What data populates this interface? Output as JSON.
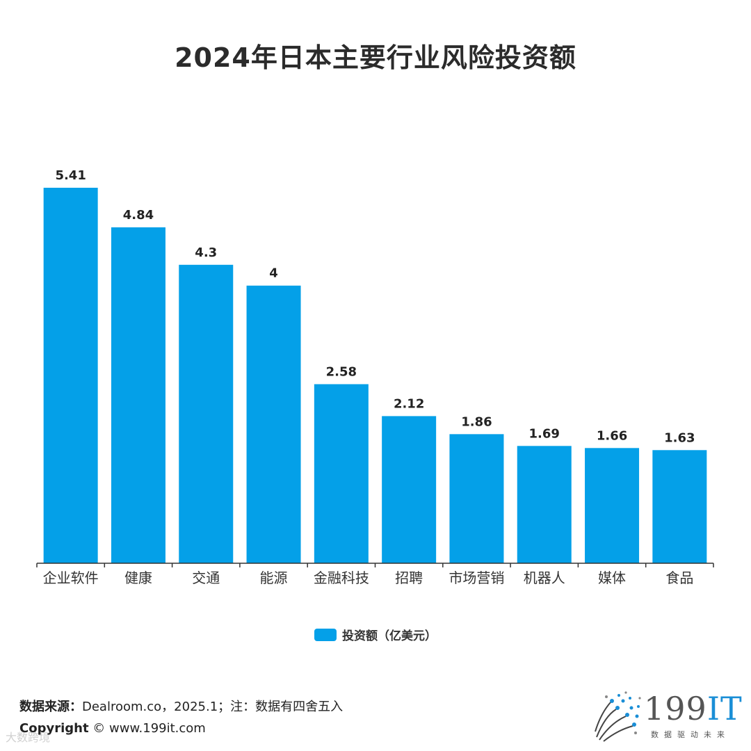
{
  "title": "2024年日本主要行业风险投资额",
  "colors": {
    "bar": "#04a0e8",
    "axis": "#333333",
    "label": "#222222"
  },
  "chart_data": {
    "type": "bar",
    "title": "2024年日本主要行业风险投资额",
    "categories": [
      "企业软件",
      "健康",
      "交通",
      "能源",
      "金融科技",
      "招聘",
      "市场营销",
      "机器人",
      "媒体",
      "食品"
    ],
    "series": [
      {
        "name": "投资额（亿美元）",
        "values": [
          5.41,
          4.84,
          4.3,
          4,
          2.58,
          2.12,
          1.86,
          1.69,
          1.66,
          1.63
        ]
      }
    ],
    "data_labels": [
      "5.41",
      "4.84",
      "4.3",
      "4",
      "2.58",
      "2.12",
      "1.86",
      "1.69",
      "1.66",
      "1.63"
    ],
    "ylim": [
      0,
      5.41
    ],
    "grid": false,
    "legend_position": "bottom"
  },
  "legend": {
    "label": "投资额（亿美元）"
  },
  "footer": {
    "source_label": "数据来源：",
    "source_text": "Dealroom.co，2025.1；注：数据有四舍五入",
    "copyright_label": "Copyright",
    "copyright_text": "© www.199it.com",
    "watermark": "大数跨境"
  },
  "logo": {
    "name": "199IT",
    "main": "199",
    "accent": "IT",
    "tagline": "数据驱动未来",
    "icon": "dot-burst-logo-icon"
  }
}
